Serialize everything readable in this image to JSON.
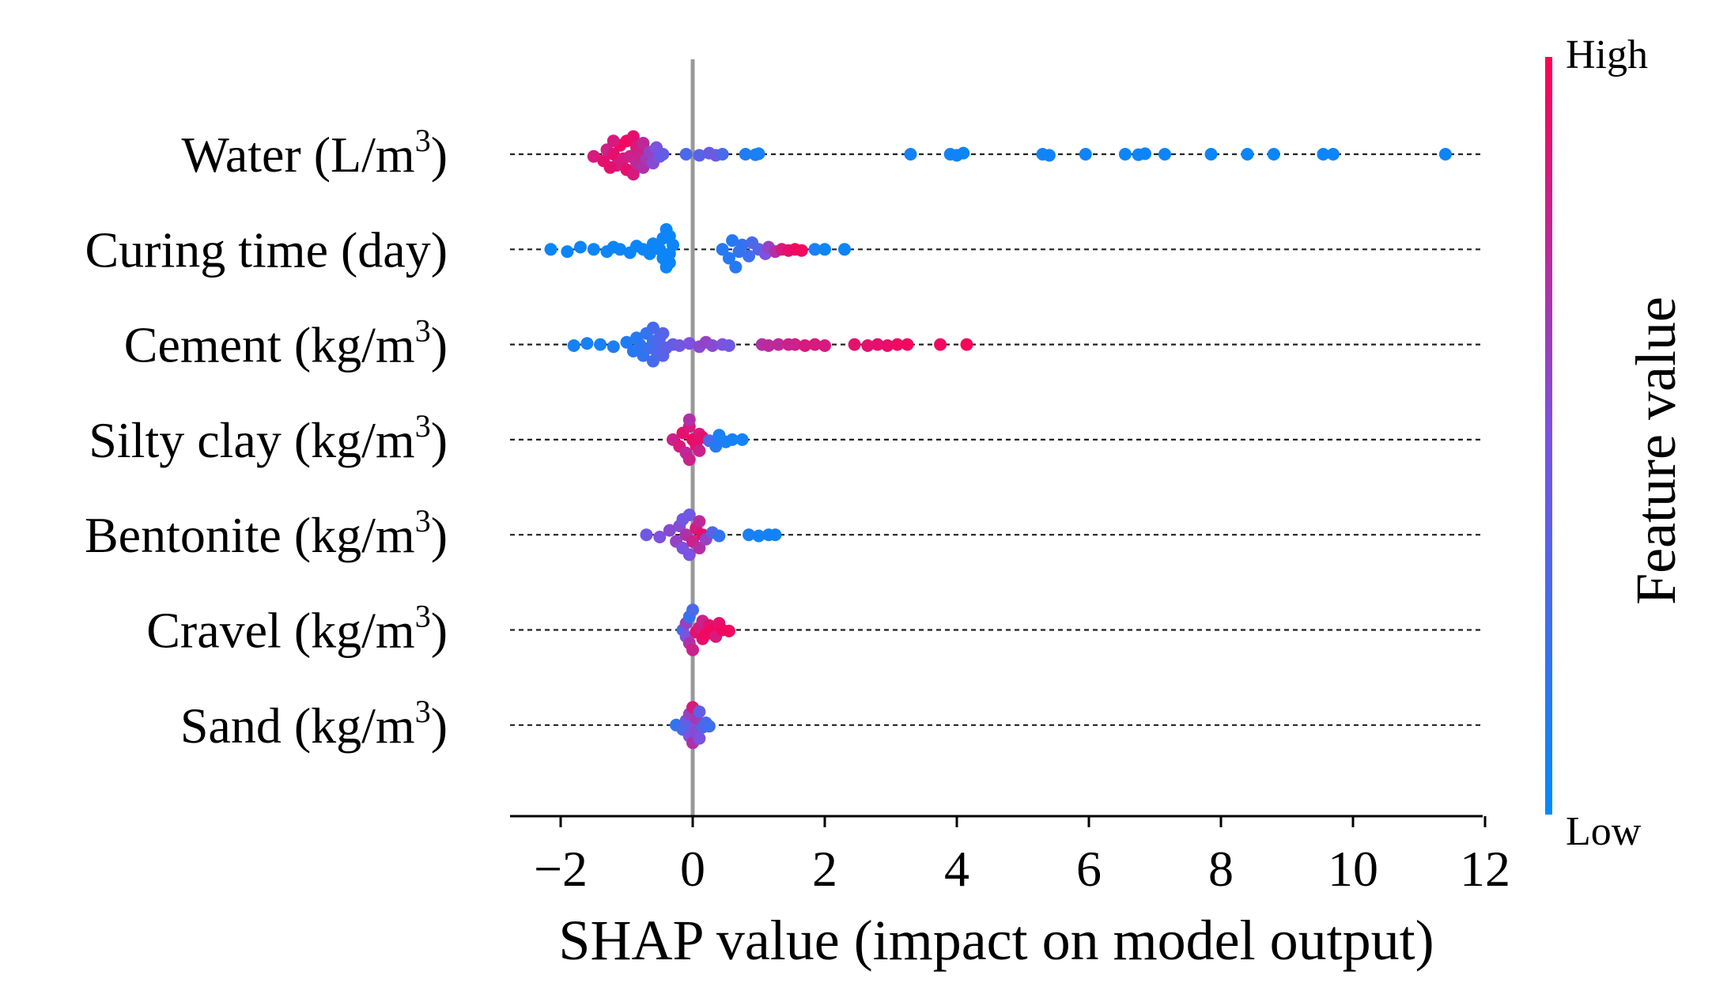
{
  "chart_data": {
    "type": "scatter",
    "subtype": "shap-beeswarm",
    "xlabel": "SHAP value (impact on model output)",
    "xlim": [
      -2.8,
      12.2
    ],
    "xticks": [
      -2,
      0,
      2,
      4,
      6,
      8,
      10,
      12
    ],
    "xtick_labels": [
      "−2",
      "0",
      "2",
      "4",
      "6",
      "8",
      "10",
      "12"
    ],
    "colorbar": {
      "title": "Feature value",
      "high_label": "High",
      "low_label": "Low",
      "low_color": "#008bfb",
      "high_color": "#ff0052"
    },
    "features": [
      {
        "name": "Water",
        "unit_base": " (L/m",
        "unit_sup": "3",
        "unit_close": ")",
        "points": [
          [
            -1.5,
            0.1,
            0.85
          ],
          [
            -1.35,
            0.3,
            0.9
          ],
          [
            -1.3,
            -0.2,
            0.8
          ],
          [
            -1.2,
            0.0,
            0.9
          ],
          [
            -1.15,
            0.5,
            0.85
          ],
          [
            -1.1,
            -0.4,
            0.95
          ],
          [
            -1.05,
            0.2,
            0.85
          ],
          [
            -1.0,
            0.7,
            0.9
          ],
          [
            -1.0,
            -0.6,
            0.95
          ],
          [
            -0.95,
            0.1,
            0.8
          ],
          [
            -0.9,
            0.9,
            0.85
          ],
          [
            -0.9,
            -0.8,
            0.9
          ],
          [
            -0.85,
            0.4,
            0.75
          ],
          [
            -0.85,
            -0.3,
            0.85
          ],
          [
            -0.8,
            0.0,
            0.8
          ],
          [
            -0.75,
            0.6,
            0.7
          ],
          [
            -0.75,
            -0.5,
            0.75
          ],
          [
            -0.7,
            0.2,
            0.65
          ],
          [
            -0.65,
            -0.1,
            0.6
          ],
          [
            -0.6,
            0.4,
            0.55
          ],
          [
            -0.55,
            -0.3,
            0.5
          ],
          [
            -0.5,
            0.1,
            0.45
          ],
          [
            -0.45,
            0.0,
            0.4
          ],
          [
            -1.25,
            0.6,
            0.9
          ],
          [
            -1.2,
            -0.6,
            0.85
          ],
          [
            -0.1,
            0.0,
            0.3
          ],
          [
            0.1,
            0.05,
            0.35
          ],
          [
            0.25,
            -0.05,
            0.4
          ],
          [
            0.35,
            0.05,
            0.45
          ],
          [
            0.45,
            0.0,
            0.3
          ],
          [
            0.8,
            0.0,
            0.12
          ],
          [
            0.95,
            0.02,
            0.12
          ],
          [
            1.0,
            -0.02,
            0.1
          ],
          [
            3.3,
            0.0,
            0.08
          ],
          [
            3.9,
            0.0,
            0.08
          ],
          [
            4.0,
            0.05,
            0.06
          ],
          [
            4.1,
            -0.05,
            0.06
          ],
          [
            5.3,
            0.0,
            0.08
          ],
          [
            5.4,
            0.05,
            0.06
          ],
          [
            5.95,
            0.0,
            0.06
          ],
          [
            6.55,
            0.0,
            0.05
          ],
          [
            6.75,
            0.02,
            0.05
          ],
          [
            6.85,
            -0.02,
            0.05
          ],
          [
            7.15,
            0.0,
            0.05
          ],
          [
            7.85,
            0.0,
            0.05
          ],
          [
            8.4,
            0.0,
            0.05
          ],
          [
            8.8,
            0.0,
            0.05
          ],
          [
            9.55,
            0.0,
            0.05
          ],
          [
            9.7,
            0.0,
            0.05
          ],
          [
            11.4,
            0.0,
            0.05
          ]
        ]
      },
      {
        "name": "Curing time",
        "unit_base": " (day",
        "unit_sup": "",
        "unit_close": ")",
        "points": [
          [
            -2.15,
            0.0,
            0.05
          ],
          [
            -1.9,
            0.1,
            0.05
          ],
          [
            -1.7,
            -0.1,
            0.05
          ],
          [
            -1.5,
            0.0,
            0.05
          ],
          [
            -1.3,
            0.1,
            0.05
          ],
          [
            -1.2,
            -0.1,
            0.05
          ],
          [
            -1.1,
            0.0,
            0.05
          ],
          [
            -0.95,
            0.15,
            0.05
          ],
          [
            -0.85,
            -0.15,
            0.05
          ],
          [
            -0.75,
            0.0,
            0.05
          ],
          [
            -0.65,
            0.2,
            0.05
          ],
          [
            -0.6,
            -0.25,
            0.05
          ],
          [
            -0.5,
            0.0,
            0.05
          ],
          [
            -0.45,
            0.4,
            0.05
          ],
          [
            -0.45,
            -0.5,
            0.05
          ],
          [
            -0.4,
            0.8,
            0.05
          ],
          [
            -0.4,
            -0.9,
            0.05
          ],
          [
            -0.35,
            0.2,
            0.05
          ],
          [
            -0.3,
            -0.2,
            0.05
          ],
          [
            -0.35,
            0.6,
            0.05
          ],
          [
            -0.35,
            -0.6,
            0.05
          ],
          [
            0.45,
            0.0,
            0.15
          ],
          [
            0.55,
            0.4,
            0.15
          ],
          [
            0.6,
            -0.4,
            0.15
          ],
          [
            0.65,
            0.8,
            0.15
          ],
          [
            0.7,
            0.1,
            0.2
          ],
          [
            0.75,
            -0.2,
            0.2
          ],
          [
            0.85,
            0.3,
            0.25
          ],
          [
            0.9,
            -0.3,
            0.3
          ],
          [
            1.0,
            0.0,
            0.35
          ],
          [
            1.1,
            0.2,
            0.5
          ],
          [
            1.15,
            -0.1,
            0.6
          ],
          [
            1.25,
            0.1,
            0.7
          ],
          [
            1.35,
            0.0,
            0.85
          ],
          [
            1.45,
            0.05,
            0.9
          ],
          [
            1.55,
            0.0,
            0.95
          ],
          [
            1.65,
            0.05,
            0.95
          ],
          [
            1.85,
            0.0,
            0.1
          ],
          [
            2.0,
            0.0,
            0.05
          ],
          [
            2.3,
            0.0,
            0.05
          ]
        ]
      },
      {
        "name": "Cement",
        "unit_base": " (kg/m",
        "unit_sup": "3",
        "unit_close": ")",
        "points": [
          [
            -1.8,
            0.05,
            0.08
          ],
          [
            -1.6,
            -0.05,
            0.1
          ],
          [
            -1.4,
            0.0,
            0.1
          ],
          [
            -1.2,
            0.1,
            0.12
          ],
          [
            -1.0,
            -0.1,
            0.12
          ],
          [
            -0.9,
            0.3,
            0.15
          ],
          [
            -0.85,
            -0.3,
            0.15
          ],
          [
            -0.8,
            0.0,
            0.18
          ],
          [
            -0.75,
            0.5,
            0.2
          ],
          [
            -0.7,
            -0.5,
            0.2
          ],
          [
            -0.65,
            0.15,
            0.25
          ],
          [
            -0.6,
            -0.15,
            0.25
          ],
          [
            -0.6,
            0.75,
            0.28
          ],
          [
            -0.6,
            -0.75,
            0.28
          ],
          [
            -0.55,
            0.3,
            0.3
          ],
          [
            -0.5,
            -0.3,
            0.3
          ],
          [
            -0.5,
            0.0,
            0.32
          ],
          [
            -0.45,
            0.5,
            0.35
          ],
          [
            -0.45,
            -0.5,
            0.35
          ],
          [
            -0.4,
            0.15,
            0.38
          ],
          [
            -0.3,
            0.0,
            0.4
          ],
          [
            -0.2,
            0.05,
            0.45
          ],
          [
            -0.05,
            -0.05,
            0.5
          ],
          [
            0.1,
            0.1,
            0.55
          ],
          [
            0.2,
            -0.1,
            0.6
          ],
          [
            0.3,
            0.05,
            0.55
          ],
          [
            0.45,
            0.0,
            0.5
          ],
          [
            0.55,
            0.05,
            0.45
          ],
          [
            1.05,
            0.0,
            0.7
          ],
          [
            1.15,
            0.05,
            0.75
          ],
          [
            1.3,
            0.0,
            0.75
          ],
          [
            1.45,
            0.0,
            0.8
          ],
          [
            1.55,
            0.0,
            0.8
          ],
          [
            1.7,
            0.05,
            0.85
          ],
          [
            1.85,
            0.0,
            0.85
          ],
          [
            2.0,
            0.05,
            0.85
          ],
          [
            2.45,
            0.0,
            0.9
          ],
          [
            2.65,
            0.05,
            0.9
          ],
          [
            2.8,
            0.0,
            0.9
          ],
          [
            2.95,
            0.05,
            0.92
          ],
          [
            3.1,
            0.0,
            0.95
          ],
          [
            3.25,
            0.0,
            0.95
          ],
          [
            3.75,
            0.0,
            0.95
          ],
          [
            4.15,
            0.0,
            0.98
          ]
        ]
      },
      {
        "name": "Silty clay",
        "unit_base": " (kg/m",
        "unit_sup": "3",
        "unit_close": ")",
        "points": [
          [
            -0.3,
            0.0,
            0.8
          ],
          [
            -0.2,
            0.3,
            0.85
          ],
          [
            -0.15,
            -0.3,
            0.9
          ],
          [
            -0.1,
            0.6,
            0.75
          ],
          [
            -0.05,
            -0.6,
            0.85
          ],
          [
            -0.05,
            0.9,
            0.8
          ],
          [
            -0.05,
            -0.9,
            0.7
          ],
          [
            0.0,
            0.0,
            0.95
          ],
          [
            0.05,
            0.25,
            0.9
          ],
          [
            0.1,
            -0.25,
            0.85
          ],
          [
            0.1,
            0.5,
            0.8
          ],
          [
            0.15,
            -0.1,
            0.9
          ],
          [
            0.25,
            0.05,
            0.3
          ],
          [
            0.35,
            0.3,
            0.15
          ],
          [
            0.4,
            -0.2,
            0.1
          ],
          [
            0.5,
            0.1,
            0.1
          ],
          [
            0.6,
            0.0,
            0.08
          ],
          [
            0.75,
            0.0,
            0.08
          ]
        ]
      },
      {
        "name": "Bentonite",
        "unit_base": " (kg/m",
        "unit_sup": "3",
        "unit_close": ")",
        "points": [
          [
            -0.7,
            0.0,
            0.45
          ],
          [
            -0.5,
            0.1,
            0.5
          ],
          [
            -0.35,
            -0.2,
            0.55
          ],
          [
            -0.25,
            0.3,
            0.6
          ],
          [
            -0.2,
            -0.4,
            0.55
          ],
          [
            -0.15,
            0.6,
            0.5
          ],
          [
            -0.15,
            -0.7,
            0.45
          ],
          [
            -0.1,
            0.0,
            0.7
          ],
          [
            -0.05,
            0.9,
            0.5
          ],
          [
            -0.05,
            -0.9,
            0.45
          ],
          [
            0.0,
            0.3,
            0.8
          ],
          [
            0.05,
            -0.3,
            0.85
          ],
          [
            0.1,
            0.6,
            0.7
          ],
          [
            0.1,
            -0.6,
            0.75
          ],
          [
            0.15,
            0.0,
            0.9
          ],
          [
            0.2,
            0.2,
            0.6
          ],
          [
            0.3,
            -0.1,
            0.35
          ],
          [
            0.4,
            0.05,
            0.2
          ],
          [
            0.85,
            0.0,
            0.1
          ],
          [
            1.0,
            0.05,
            0.08
          ],
          [
            1.15,
            0.0,
            0.08
          ],
          [
            1.25,
            0.0,
            0.08
          ]
        ]
      },
      {
        "name": "Cravel",
        "unit_base": " (kg/m",
        "unit_sup": "3",
        "unit_close": ")",
        "points": [
          [
            -0.15,
            0.0,
            0.3
          ],
          [
            -0.1,
            0.3,
            0.5
          ],
          [
            -0.1,
            -0.3,
            0.6
          ],
          [
            -0.05,
            0.6,
            0.7
          ],
          [
            -0.05,
            -0.6,
            0.2
          ],
          [
            0.0,
            0.9,
            0.8
          ],
          [
            0.0,
            -0.9,
            0.3
          ],
          [
            0.05,
            0.1,
            0.9
          ],
          [
            0.1,
            -0.1,
            0.85
          ],
          [
            0.15,
            0.4,
            0.9
          ],
          [
            0.15,
            -0.4,
            0.8
          ],
          [
            0.2,
            0.2,
            0.95
          ],
          [
            0.25,
            -0.2,
            0.9
          ],
          [
            0.3,
            0.0,
            0.95
          ],
          [
            0.35,
            0.3,
            0.85
          ],
          [
            0.4,
            -0.3,
            0.9
          ],
          [
            0.45,
            0.0,
            0.95
          ],
          [
            0.55,
            0.05,
            0.95
          ]
        ]
      },
      {
        "name": "Sand",
        "unit_base": " (kg/m",
        "unit_sup": "3",
        "unit_close": ")",
        "points": [
          [
            -0.25,
            0.0,
            0.2
          ],
          [
            -0.15,
            0.2,
            0.3
          ],
          [
            -0.1,
            -0.2,
            0.4
          ],
          [
            -0.05,
            0.5,
            0.5
          ],
          [
            -0.05,
            -0.5,
            0.6
          ],
          [
            0.0,
            0.0,
            0.45
          ],
          [
            0.0,
            0.8,
            0.7
          ],
          [
            0.0,
            -0.8,
            0.85
          ],
          [
            0.05,
            0.3,
            0.55
          ],
          [
            0.05,
            -0.3,
            0.65
          ],
          [
            0.1,
            0.6,
            0.5
          ],
          [
            0.1,
            -0.6,
            0.4
          ],
          [
            0.15,
            0.1,
            0.35
          ],
          [
            0.2,
            -0.1,
            0.3
          ],
          [
            0.25,
            0.05,
            0.25
          ]
        ]
      }
    ]
  }
}
